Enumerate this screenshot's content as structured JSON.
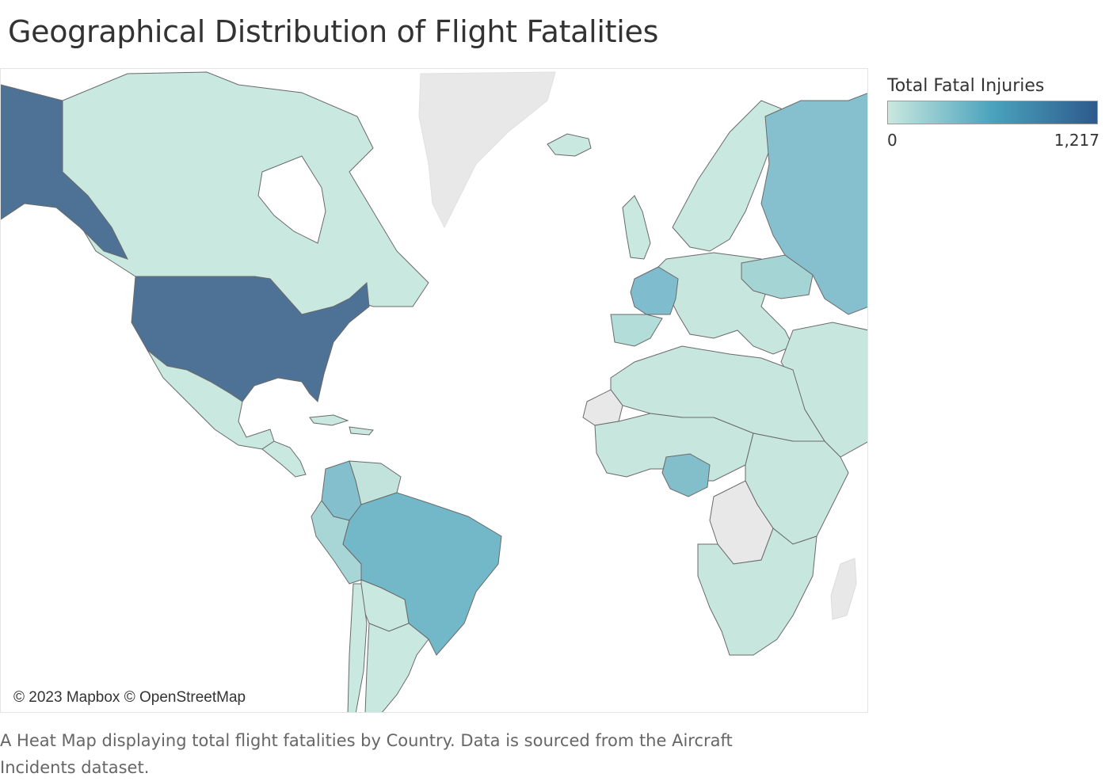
{
  "title": "Geographical Distribution of Flight Fatalities",
  "legend": {
    "title": "Total Fatal Injuries",
    "min_label": "0",
    "max_label": "1,217",
    "min": 0,
    "max": 1217,
    "color_low": "#c9e8df",
    "color_mid": "#4aa3bd",
    "color_high": "#2d5a8c"
  },
  "colors": {
    "no_data": "#e8e8e8",
    "border": "#6a6a6a",
    "ocean": "#ffffff"
  },
  "attribution": "© 2023 Mapbox © OpenStreetMap",
  "caption": "A Heat Map displaying  total flight fatalities by Country. Data is sourced from the Aircraft Incidents dataset.",
  "map": {
    "type": "choropleth",
    "measure": "Total Fatal Injuries",
    "regions": [
      {
        "name": "United States",
        "fill": "#4d7296"
      },
      {
        "name": "Alaska (United States)",
        "fill": "#4d7296"
      },
      {
        "name": "Canada",
        "fill": "#c9e8df"
      },
      {
        "name": "Greenland",
        "fill": "#e8e8e8"
      },
      {
        "name": "Mexico",
        "fill": "#c9e8df"
      },
      {
        "name": "Brazil",
        "fill": "#72b8c8"
      },
      {
        "name": "Colombia",
        "fill": "#84bfcd"
      },
      {
        "name": "Peru",
        "fill": "#a8d6d6"
      },
      {
        "name": "Venezuela",
        "fill": "#c1e3db"
      },
      {
        "name": "Bolivia",
        "fill": "#c9e8df"
      },
      {
        "name": "Argentina",
        "fill": "#c9e8df"
      },
      {
        "name": "Chile",
        "fill": "#c9e8df"
      },
      {
        "name": "Russia",
        "fill": "#86c0cf"
      },
      {
        "name": "France",
        "fill": "#7fbccd"
      },
      {
        "name": "Spain",
        "fill": "#b3ddd8"
      },
      {
        "name": "Ukraine",
        "fill": "#a5d4d5"
      },
      {
        "name": "Nigeria",
        "fill": "#82bfcb"
      },
      {
        "name": "Iceland",
        "fill": "#c9e8df"
      },
      {
        "name": "Europe (other)",
        "fill": "#c6e6de"
      },
      {
        "name": "Africa (other)",
        "fill": "#c6e6de"
      },
      {
        "name": "DR Congo",
        "fill": "#e8e8e8"
      },
      {
        "name": "Madagascar",
        "fill": "#e8e8e8"
      }
    ]
  }
}
